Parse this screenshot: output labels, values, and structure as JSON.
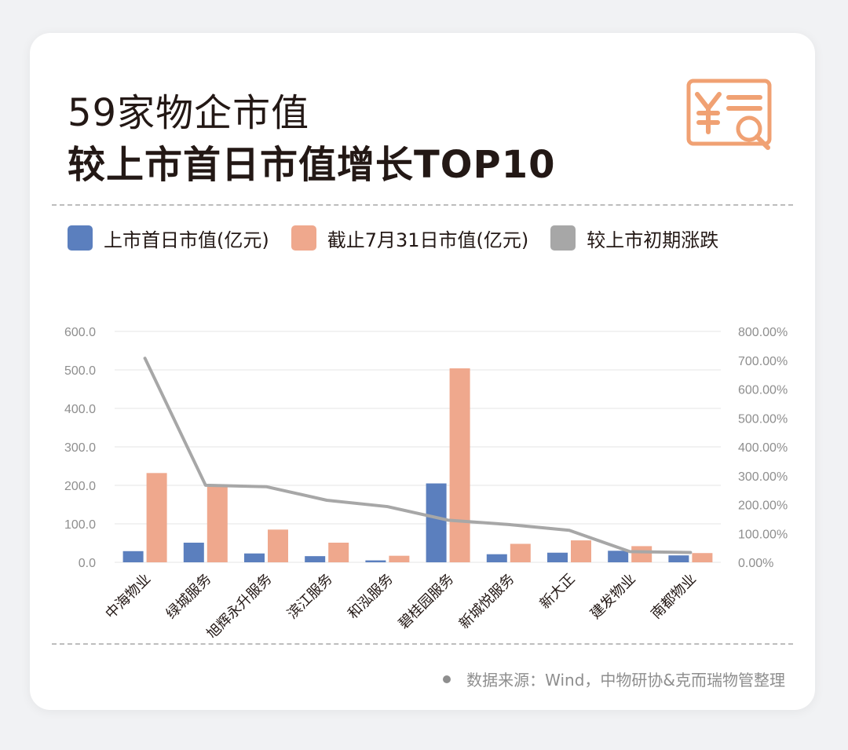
{
  "header": {
    "title_line1": "59家物企市值",
    "title_line2": "较上市首日市值增长TOP10"
  },
  "colors": {
    "series_first_day": "#5b7fbe",
    "series_jul31": "#efa88d",
    "series_change": "#a7a7a7",
    "icon": "#f0a173"
  },
  "icon_name": "yuan-document-search-icon",
  "legend": {
    "first_day": "上市首日市值(亿元)",
    "jul31": "截止7月31日市值(亿元)",
    "change": "较上市初期涨跌"
  },
  "source": "数据来源：Wind，中物研协&克而瑞物管整理",
  "chart_data": {
    "type": "bar",
    "categories": [
      "中海物业",
      "绿城服务",
      "旭辉永升服务",
      "滨江服务",
      "和泓服务",
      "碧桂园服务",
      "新城悦服务",
      "新大正",
      "建发物业",
      "南都物业"
    ],
    "series": [
      {
        "name": "上市首日市值(亿元)",
        "type": "bar",
        "axis": "left",
        "values": [
          29,
          51,
          23,
          16,
          5,
          205,
          21,
          25,
          30,
          18
        ]
      },
      {
        "name": "截止7月31日市值(亿元)",
        "type": "bar",
        "axis": "left",
        "values": [
          232,
          196,
          85,
          51,
          17,
          504,
          48,
          57,
          42,
          24
        ]
      },
      {
        "name": "较上市初期涨跌",
        "type": "line",
        "axis": "right",
        "values": [
          707,
          267,
          262,
          215,
          193,
          146,
          131,
          111,
          37,
          34
        ]
      }
    ],
    "y_left": {
      "min": 0,
      "max": 600,
      "ticks": [
        "0.0",
        "100.0",
        "200.0",
        "300.0",
        "400.0",
        "500.0",
        "600.0"
      ]
    },
    "y_right": {
      "min": 0,
      "max": 800,
      "ticks": [
        "0.00%",
        "100.00%",
        "200.00%",
        "300.00%",
        "400.00%",
        "500.00%",
        "600.00%",
        "700.00%",
        "800.00%"
      ]
    },
    "legend_position": "top",
    "grid": true
  }
}
